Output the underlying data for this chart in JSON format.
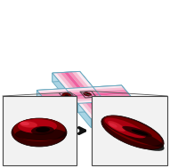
{
  "bg_color": "#ffffff",
  "ch_top_color": "#d0eef8",
  "ch_side_color": "#a8d4e4",
  "ch_front_color": "#b8dcea",
  "ch_edge_color": "#6aaac0",
  "flow_colors": [
    "#fde8f0",
    "#f9c0d4",
    "#f590b8",
    "#f060a0",
    "#f590b8",
    "#f9c0d4",
    "#fde8f0"
  ],
  "box_bg": "#f2f2f2",
  "box_edge": "#444444",
  "arrow_color": "#111111",
  "line_color": "#555555",
  "fig_width": 1.91,
  "fig_height": 1.89,
  "dpi": 100
}
